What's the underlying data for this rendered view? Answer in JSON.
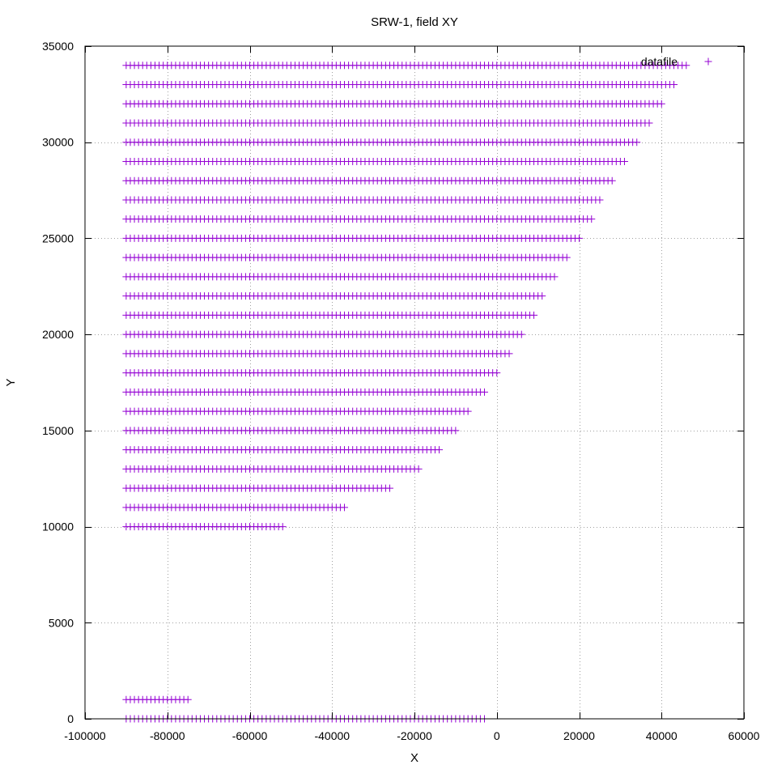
{
  "chart_data": {
    "type": "scatter",
    "title": "SRW-1, field XY",
    "xlabel": "X",
    "ylabel": "Y",
    "xlim": [
      -100000,
      60000
    ],
    "ylim": [
      0,
      35000
    ],
    "xticks": [
      -100000,
      -80000,
      -60000,
      -40000,
      -20000,
      0,
      20000,
      40000,
      60000
    ],
    "yticks": [
      0,
      5000,
      10000,
      15000,
      20000,
      25000,
      30000,
      35000
    ],
    "xtick_labels": [
      "-100000",
      "-80000",
      "-60000",
      "-40000",
      "-20000",
      "0",
      "20000",
      "40000",
      "60000"
    ],
    "ytick_labels": [
      "0",
      "5000",
      "10000",
      "15000",
      "20000",
      "25000",
      "30000",
      "35000"
    ],
    "grid": true,
    "legend_position": "top-right",
    "marker": "+",
    "series": [
      {
        "name": "datafile",
        "color": "#9400d3",
        "x_start": -90000,
        "x_step": 1000,
        "rows": [
          {
            "y": 0,
            "x_end": -2500
          },
          {
            "y": 1000,
            "x_end": -75000
          },
          {
            "y": 10000,
            "x_end": -51500
          },
          {
            "y": 11000,
            "x_end": -36500
          },
          {
            "y": 12000,
            "x_end": -25500
          },
          {
            "y": 13000,
            "x_end": -18500
          },
          {
            "y": 14000,
            "x_end": -13500
          },
          {
            "y": 15000,
            "x_end": -9500
          },
          {
            "y": 16000,
            "x_end": -6500
          },
          {
            "y": 17000,
            "x_end": -2500
          },
          {
            "y": 18000,
            "x_end": 500
          },
          {
            "y": 19000,
            "x_end": 3500
          },
          {
            "y": 20000,
            "x_end": 6500
          },
          {
            "y": 21000,
            "x_end": 9500
          },
          {
            "y": 22000,
            "x_end": 11500
          },
          {
            "y": 23000,
            "x_end": 14500
          },
          {
            "y": 24000,
            "x_end": 17500
          },
          {
            "y": 25000,
            "x_end": 20500
          },
          {
            "y": 26000,
            "x_end": 23500
          },
          {
            "y": 27000,
            "x_end": 25500
          },
          {
            "y": 28000,
            "x_end": 28500
          },
          {
            "y": 29000,
            "x_end": 31500
          },
          {
            "y": 30000,
            "x_end": 34500
          },
          {
            "y": 31000,
            "x_end": 37500
          },
          {
            "y": 32000,
            "x_end": 40500
          },
          {
            "y": 33000,
            "x_end": 43500
          },
          {
            "y": 34000,
            "x_end": 46500
          }
        ]
      }
    ]
  }
}
